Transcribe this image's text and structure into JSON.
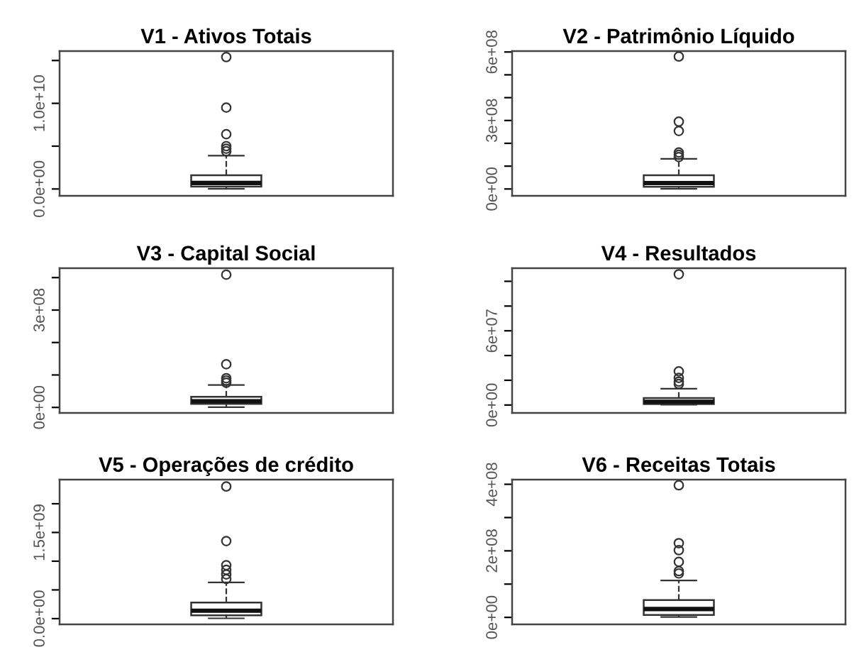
{
  "chart_data": [
    {
      "type": "box",
      "title": "V1 - Ativos Totais",
      "categories": [
        null
      ],
      "tick_labels": "y",
      "ylim": [
        -800000000.0,
        16100000000.0
      ],
      "yticks": [
        {
          "value": 0,
          "label": "0.0e+00"
        },
        {
          "value": 5000000000.0,
          "label": null
        },
        {
          "value": 10000000000.0,
          "label": "1.0e+10"
        },
        {
          "value": 15000000000.0,
          "label": null
        }
      ],
      "boxes": [
        {
          "low": 20000000.0,
          "q1": 270000000.0,
          "median": 700000000.0,
          "q3": 1600000000.0,
          "high": 3900000000.0,
          "outliers": [
            4400000000.0,
            4700000000.0,
            5000000000.0,
            6400000000.0,
            9500000000.0,
            15400000000.0
          ]
        }
      ]
    },
    {
      "type": "box",
      "title": "V2 - Patrimônio Líquido",
      "categories": [
        null
      ],
      "tick_labels": "y",
      "ylim": [
        -30000000.0,
        604000000.0
      ],
      "yticks": [
        {
          "value": 0,
          "label": "0e+00"
        },
        {
          "value": 100000000.0,
          "label": null
        },
        {
          "value": 200000000.0,
          "label": null
        },
        {
          "value": 300000000.0,
          "label": "3e+08"
        },
        {
          "value": 400000000.0,
          "label": null
        },
        {
          "value": 500000000.0,
          "label": null
        },
        {
          "value": 600000000.0,
          "label": "6e+08"
        }
      ],
      "boxes": [
        {
          "low": 1000000.0,
          "q1": 10000000.0,
          "median": 26000000.0,
          "q3": 60000000.0,
          "high": 132000000.0,
          "outliers": [
            140000000.0,
            150000000.0,
            160000000.0,
            254000000.0,
            295000000.0,
            580000000.0
          ]
        }
      ]
    },
    {
      "type": "box",
      "title": "V3 - Capital Social",
      "categories": [
        null
      ],
      "tick_labels": "y",
      "ylim": [
        -17000000.0,
        429000000.0
      ],
      "yticks": [
        {
          "value": 0,
          "label": "0e+00"
        },
        {
          "value": 100000000.0,
          "label": null
        },
        {
          "value": 200000000.0,
          "label": null
        },
        {
          "value": 300000000.0,
          "label": "3e+08"
        },
        {
          "value": 400000000.0,
          "label": null
        }
      ],
      "boxes": [
        {
          "low": 1000000.0,
          "q1": 11000000.0,
          "median": 19000000.0,
          "q3": 33000000.0,
          "high": 69000000.0,
          "outliers": [
            76000000.0,
            83000000.0,
            90000000.0,
            133000000.0,
            409000000.0
          ]
        }
      ]
    },
    {
      "type": "box",
      "title": "V4 - Resultados",
      "categories": [
        null
      ],
      "tick_labels": "y",
      "ylim": [
        -6400000.0,
        110600000.0
      ],
      "yticks": [
        {
          "value": 0,
          "label": "0e+00"
        },
        {
          "value": 20000000.0,
          "label": null
        },
        {
          "value": 40000000.0,
          "label": null
        },
        {
          "value": 60000000.0,
          "label": "6e+07"
        },
        {
          "value": 80000000.0,
          "label": null
        },
        {
          "value": 100000000.0,
          "label": null
        }
      ],
      "boxes": [
        {
          "low": 200000.0,
          "q1": 800000.0,
          "median": 2600000.0,
          "q3": 5700000.0,
          "high": 13200000.0,
          "outliers": [
            17000000.0,
            18900000.0,
            21900000.0,
            27200000.0,
            105700000.0
          ]
        }
      ]
    },
    {
      "type": "box",
      "title": "V5 - Operações de crédito",
      "categories": [
        null
      ],
      "tick_labels": "y",
      "ylim": [
        -100000000.0,
        2420000000.0
      ],
      "yticks": [
        {
          "value": 0,
          "label": "0.0e+00"
        },
        {
          "value": 500000000.0,
          "label": null
        },
        {
          "value": 1000000000.0,
          "label": null
        },
        {
          "value": 1500000000.0,
          "label": "1.5e+09"
        },
        {
          "value": 2000000000.0,
          "label": null
        }
      ],
      "boxes": [
        {
          "low": 5000000.0,
          "q1": 56000000.0,
          "median": 137000000.0,
          "q3": 280000000.0,
          "high": 630000000.0,
          "outliers": [
            690000000.0,
            770000000.0,
            850000000.0,
            930000000.0,
            1350000000.0,
            2300000000.0
          ]
        }
      ]
    },
    {
      "type": "box",
      "title": "V6 - Receitas Totais",
      "categories": [
        null
      ],
      "tick_labels": "y",
      "ylim": [
        -21000000.0,
        414000000.0
      ],
      "yticks": [
        {
          "value": 0,
          "label": "0e+00"
        },
        {
          "value": 100000000.0,
          "label": null
        },
        {
          "value": 200000000.0,
          "label": "2e+08"
        },
        {
          "value": 300000000.0,
          "label": null
        },
        {
          "value": 400000000.0,
          "label": "4e+08"
        }
      ],
      "boxes": [
        {
          "low": 1000000.0,
          "q1": 7000000.0,
          "median": 25000000.0,
          "q3": 52000000.0,
          "high": 111000000.0,
          "outliers": [
            132000000.0,
            139000000.0,
            167000000.0,
            202000000.0,
            223000000.0,
            397000000.0
          ]
        }
      ]
    }
  ]
}
